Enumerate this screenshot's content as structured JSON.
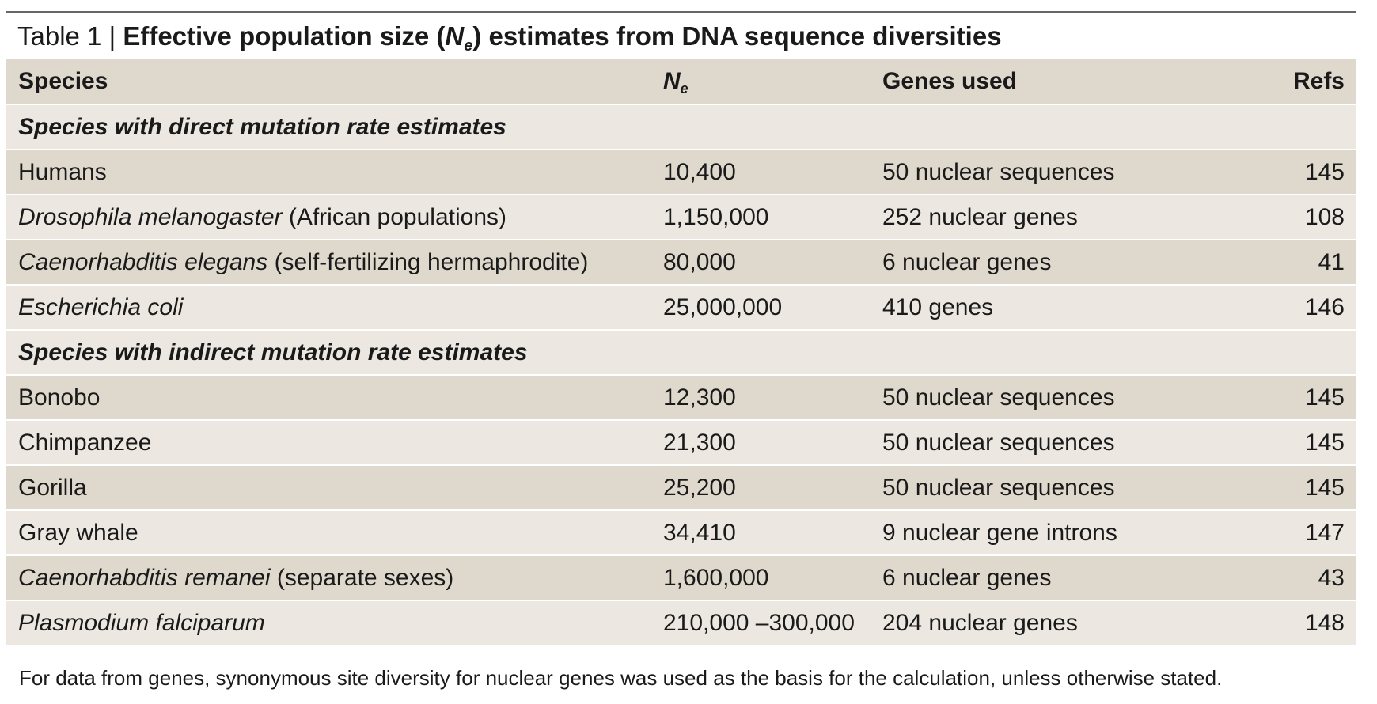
{
  "title": {
    "label": "Table 1 | ",
    "bold_prefix": "Effective population size (",
    "symbol": "N",
    "symbol_sub": "e",
    "bold_suffix": ") estimates from DNA sequence diversities"
  },
  "headers": {
    "species": "Species",
    "ne_symbol": "N",
    "ne_sub": "e",
    "genes": "Genes used",
    "refs": "Refs"
  },
  "sections": [
    {
      "heading": "Species with direct mutation rate estimates",
      "rows": [
        {
          "species_italic": "",
          "species": "Humans",
          "ne": "10,400",
          "genes": "50 nuclear sequences",
          "refs": "145"
        },
        {
          "species_italic": "Drosophila melanogaster",
          "species": " (African populations)",
          "ne": "1,150,000",
          "genes": "252 nuclear genes",
          "refs": "108"
        },
        {
          "species_italic": "Caenorhabditis elegans",
          "species": " (self-fertilizing hermaphrodite)",
          "ne": "80,000",
          "genes": "6 nuclear genes",
          "refs": "41"
        },
        {
          "species_italic": "Escherichia coli",
          "species": "",
          "ne": "25,000,000",
          "genes": "410 genes",
          "refs": "146"
        }
      ]
    },
    {
      "heading": "Species with indirect mutation rate estimates",
      "rows": [
        {
          "species_italic": "",
          "species": "Bonobo",
          "ne": "12,300",
          "genes": "50 nuclear sequences",
          "refs": "145"
        },
        {
          "species_italic": "",
          "species": "Chimpanzee",
          "ne": "21,300",
          "genes": "50 nuclear sequences",
          "refs": "145"
        },
        {
          "species_italic": "",
          "species": "Gorilla",
          "ne": "25,200",
          "genes": "50 nuclear sequences",
          "refs": "145"
        },
        {
          "species_italic": "",
          "species": "Gray whale",
          "ne": "34,410",
          "genes": "9 nuclear gene introns",
          "refs": "147"
        },
        {
          "species_italic": "Caenorhabditis remanei",
          "species": " (separate sexes)",
          "ne": "1,600,000",
          "genes": "6 nuclear genes",
          "refs": "43"
        },
        {
          "species_italic": "Plasmodium falciparum",
          "species": "",
          "ne": "210,000 –300,000",
          "genes": "204 nuclear genes",
          "refs": "148"
        }
      ]
    }
  ],
  "footnote": "For data from genes, synonymous site diversity for nuclear genes was used as the basis for the calculation, unless otherwise stated."
}
